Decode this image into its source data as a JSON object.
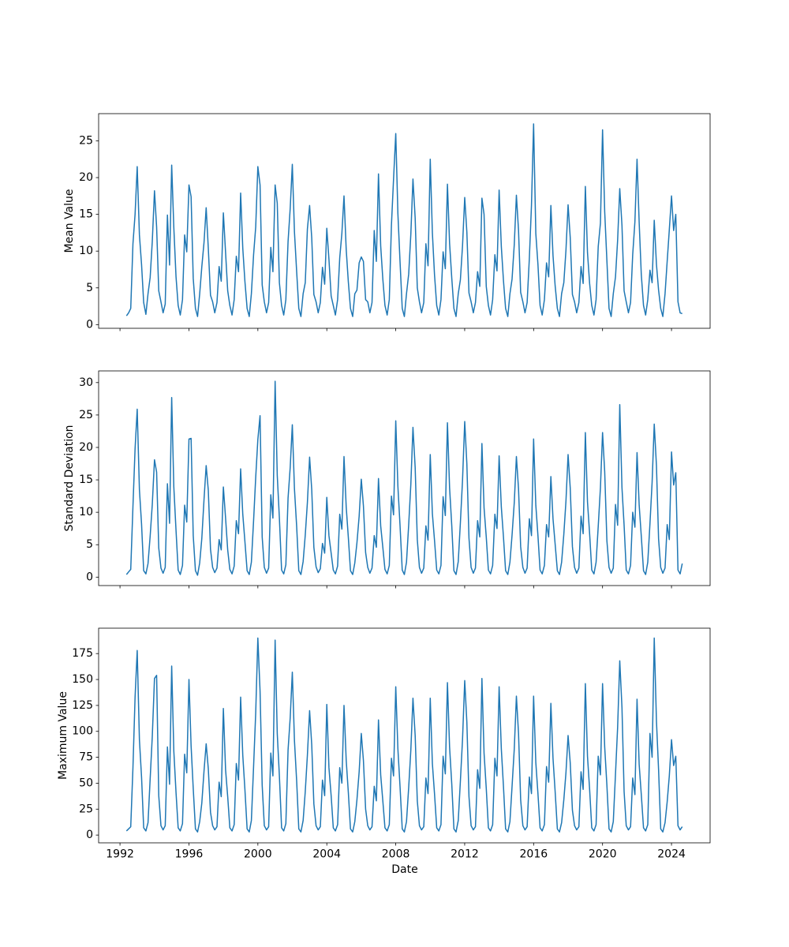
{
  "figure": {
    "background": "#ffffff",
    "line_color": "#1f77b4",
    "axis_color": "#000000",
    "xlabel": "Date",
    "x_tick_labels": [
      "1992",
      "1996",
      "2000",
      "2004",
      "2008",
      "2012",
      "2016",
      "2020",
      "2024"
    ],
    "x_ticks": [
      1992,
      1996,
      2000,
      2004,
      2008,
      2012,
      2016,
      2020,
      2024
    ],
    "xlim": [
      1990.76,
      2026.24
    ]
  },
  "chart_data": [
    {
      "type": "line",
      "title": "",
      "xlabel": "",
      "ylabel": "Mean Value",
      "legend": "none",
      "grid": false,
      "x_start": 1992.375,
      "x_step": 0.125,
      "yticks": [
        0,
        5,
        10,
        15,
        20,
        25
      ],
      "ylim": [
        -0.5,
        28.7
      ],
      "values": [
        1.2,
        1.6,
        2.2,
        11.0,
        15.0,
        21.5,
        12.2,
        8.2,
        3.0,
        1.4,
        4.2,
        6.4,
        11.3,
        18.2,
        13.3,
        4.6,
        3.1,
        1.6,
        2.8,
        14.9,
        8.1,
        21.7,
        13.2,
        6.5,
        2.6,
        1.3,
        3.4,
        12.2,
        9.9,
        19.0,
        17.4,
        6.3,
        2.2,
        1.1,
        4.2,
        7.9,
        11.2,
        15.9,
        10.4,
        4.0,
        3.1,
        1.6,
        3.0,
        7.9,
        5.9,
        15.2,
        9.8,
        4.6,
        2.6,
        1.3,
        3.4,
        9.3,
        7.2,
        17.9,
        10.4,
        5.9,
        2.2,
        1.1,
        4.2,
        9.5,
        13.3,
        21.5,
        19.0,
        5.4,
        3.1,
        1.6,
        3.0,
        10.5,
        7.2,
        19.0,
        16.5,
        5.7,
        2.6,
        1.3,
        3.4,
        11.3,
        15.8,
        21.8,
        12.6,
        7.2,
        2.2,
        1.1,
        4.2,
        5.7,
        13.0,
        16.2,
        11.8,
        4.1,
        3.1,
        1.6,
        3.0,
        7.8,
        5.5,
        13.1,
        8.9,
        3.9,
        2.6,
        1.3,
        3.4,
        9.1,
        12.4,
        17.5,
        10.2,
        5.8,
        2.2,
        1.1,
        4.2,
        4.7,
        8.4,
        9.2,
        8.6,
        3.4,
        3.1,
        1.6,
        3.0,
        12.8,
        8.6,
        20.5,
        10.7,
        6.2,
        2.6,
        1.3,
        3.4,
        13.5,
        19.8,
        26.0,
        15.1,
        8.6,
        2.2,
        1.1,
        4.2,
        6.9,
        12.3,
        19.8,
        14.5,
        5.0,
        3.1,
        1.6,
        3.0,
        11.0,
        8.0,
        22.5,
        12.5,
        6.8,
        2.6,
        1.3,
        3.4,
        9.9,
        7.6,
        19.1,
        11.1,
        6.3,
        2.2,
        1.1,
        4.2,
        6.1,
        10.7,
        17.3,
        12.6,
        4.3,
        3.1,
        1.6,
        3.0,
        7.2,
        5.2,
        17.2,
        15.0,
        5.2,
        2.6,
        1.3,
        3.4,
        9.5,
        7.3,
        18.3,
        10.6,
        6.0,
        2.2,
        1.1,
        4.2,
        6.2,
        10.9,
        17.6,
        12.8,
        4.4,
        3.1,
        1.6,
        3.0,
        9.0,
        16.2,
        27.3,
        12.4,
        8.2,
        2.6,
        1.3,
        3.4,
        8.4,
        6.5,
        16.2,
        9.4,
        5.3,
        2.2,
        1.1,
        4.2,
        5.7,
        10.1,
        16.3,
        11.9,
        4.1,
        3.1,
        1.6,
        3.0,
        7.9,
        5.6,
        18.8,
        9.8,
        5.6,
        2.6,
        1.3,
        3.4,
        10.6,
        13.8,
        26.5,
        15.4,
        8.7,
        2.2,
        1.1,
        4.2,
        6.5,
        11.5,
        18.5,
        13.5,
        4.6,
        3.1,
        1.6,
        3.0,
        9.5,
        14.0,
        22.5,
        13.9,
        6.8,
        2.6,
        1.3,
        3.4,
        7.4,
        5.7,
        14.2,
        8.2,
        4.7,
        2.2,
        1.1,
        4.2,
        8.6,
        12.9,
        17.5,
        12.8,
        15.0,
        3.1,
        1.6,
        1.5
      ]
    },
    {
      "type": "line",
      "title": "",
      "xlabel": "",
      "ylabel": "Standard Deviation",
      "legend": "none",
      "grid": false,
      "x_start": 1992.375,
      "x_step": 0.125,
      "yticks": [
        0,
        5,
        10,
        15,
        20,
        25,
        30
      ],
      "ylim": [
        -1.3,
        31.8
      ],
      "values": [
        0.4,
        0.8,
        1.2,
        10.9,
        19.8,
        25.9,
        13.5,
        8.2,
        1.0,
        0.5,
        2.1,
        6.3,
        11.2,
        18.1,
        16.2,
        4.5,
        1.4,
        0.6,
        1.5,
        14.4,
        8.3,
        27.7,
        13.9,
        7.2,
        1.1,
        0.4,
        1.8,
        11.1,
        8.5,
        21.3,
        21.4,
        6.4,
        1.0,
        0.3,
        2.2,
        6.0,
        12.0,
        17.2,
        13.4,
        4.3,
        1.5,
        0.7,
        1.4,
        5.8,
        4.2,
        13.9,
        9.1,
        4.2,
        1.2,
        0.5,
        1.7,
        8.7,
        6.7,
        16.7,
        9.7,
        5.5,
        1.0,
        0.4,
        2.3,
        8.7,
        15.4,
        21.2,
        24.9,
        6.2,
        1.5,
        0.6,
        1.4,
        12.7,
        9.1,
        30.2,
        15.7,
        9.1,
        1.1,
        0.5,
        1.9,
        12.2,
        16.9,
        23.5,
        13.6,
        7.8,
        1.0,
        0.4,
        2.4,
        6.5,
        11.5,
        18.5,
        13.5,
        4.6,
        1.6,
        0.7,
        1.3,
        5.2,
        3.7,
        12.3,
        6.4,
        3.7,
        1.1,
        0.5,
        1.7,
        9.7,
        7.4,
        18.6,
        10.8,
        6.1,
        1.0,
        0.4,
        2.2,
        5.3,
        9.4,
        15.1,
        11.0,
        3.8,
        1.5,
        0.6,
        1.4,
        6.4,
        4.6,
        15.2,
        7.9,
        4.6,
        1.2,
        0.5,
        1.8,
        12.5,
        9.6,
        24.1,
        14.0,
        8.0,
        1.1,
        0.4,
        2.3,
        8.1,
        14.3,
        23.1,
        16.9,
        5.8,
        1.5,
        0.6,
        1.4,
        7.9,
        5.7,
        18.9,
        9.8,
        5.7,
        1.1,
        0.5,
        1.8,
        12.4,
        9.5,
        23.8,
        13.8,
        7.9,
        1.0,
        0.4,
        2.4,
        8.4,
        14.9,
        24.0,
        17.5,
        6.0,
        1.5,
        0.6,
        1.4,
        8.7,
        6.2,
        20.6,
        10.7,
        6.2,
        1.1,
        0.5,
        1.8,
        9.7,
        7.5,
        18.7,
        10.8,
        6.2,
        1.0,
        0.4,
        2.3,
        6.5,
        11.5,
        18.6,
        13.6,
        4.7,
        1.5,
        0.6,
        1.4,
        9.0,
        6.4,
        21.3,
        11.1,
        6.4,
        1.1,
        0.5,
        1.8,
        8.1,
        6.2,
        15.5,
        9.0,
        5.1,
        1.0,
        0.4,
        2.3,
        6.6,
        11.7,
        18.9,
        13.8,
        4.7,
        1.5,
        0.6,
        1.4,
        9.4,
        6.7,
        22.3,
        11.6,
        6.7,
        1.1,
        0.5,
        2.3,
        7.8,
        13.8,
        22.3,
        16.3,
        5.6,
        1.5,
        0.6,
        1.4,
        11.2,
        8.0,
        26.6,
        13.8,
        8.0,
        1.1,
        0.5,
        1.8,
        10.0,
        7.7,
        19.2,
        11.1,
        6.3,
        1.0,
        0.4,
        2.3,
        8.3,
        14.6,
        23.6,
        17.2,
        5.9,
        1.5,
        0.6,
        1.4,
        8.1,
        5.8,
        19.3,
        14.2,
        16.1,
        1.1,
        0.5,
        2.1
      ]
    },
    {
      "type": "line",
      "title": "",
      "xlabel": "Date",
      "ylabel": "Maximum Value",
      "legend": "none",
      "grid": false,
      "x_start": 1992.375,
      "x_step": 0.125,
      "yticks": [
        0,
        25,
        50,
        75,
        100,
        125,
        150,
        175
      ],
      "ylim": [
        -7.5,
        199.5
      ],
      "values": [
        4,
        6,
        8,
        65,
        133,
        178,
        92,
        56,
        7,
        4,
        12,
        54,
        95,
        151,
        154,
        38,
        9,
        5,
        9,
        85,
        49,
        163,
        81,
        41,
        7,
        4,
        11,
        78,
        60,
        150,
        86,
        45,
        6,
        3,
        13,
        31,
        62,
        88,
        64,
        22,
        9,
        5,
        8,
        51,
        37,
        122,
        63,
        37,
        7,
        4,
        10,
        69,
        53,
        133,
        77,
        44,
        6,
        3,
        14,
        66,
        118,
        190,
        139,
        48,
        9,
        5,
        8,
        79,
        57,
        188,
        98,
        57,
        7,
        4,
        11,
        82,
        113,
        157,
        91,
        52,
        6,
        3,
        14,
        42,
        77,
        120,
        87,
        30,
        9,
        5,
        8,
        53,
        38,
        126,
        65,
        38,
        7,
        4,
        10,
        65,
        50,
        125,
        72,
        41,
        6,
        3,
        13,
        34,
        61,
        98,
        72,
        25,
        9,
        5,
        8,
        47,
        33,
        111,
        58,
        33,
        7,
        4,
        10,
        74,
        57,
        143,
        83,
        47,
        6,
        3,
        13,
        46,
        82,
        132,
        96,
        33,
        9,
        5,
        8,
        55,
        40,
        132,
        69,
        40,
        7,
        4,
        10,
        76,
        59,
        147,
        85,
        49,
        6,
        3,
        14,
        52,
        92,
        149,
        109,
        37,
        9,
        5,
        8,
        63,
        45,
        151,
        79,
        45,
        7,
        4,
        10,
        74,
        57,
        143,
        83,
        47,
        6,
        3,
        13,
        47,
        83,
        134,
        98,
        34,
        9,
        5,
        8,
        56,
        40,
        134,
        70,
        40,
        7,
        4,
        10,
        66,
        51,
        127,
        74,
        42,
        6,
        3,
        12,
        34,
        60,
        96,
        70,
        24,
        9,
        5,
        8,
        61,
        44,
        146,
        76,
        44,
        7,
        4,
        10,
        76,
        58,
        146,
        85,
        48,
        6,
        3,
        13,
        59,
        104,
        168,
        123,
        42,
        9,
        5,
        8,
        55,
        39,
        131,
        68,
        39,
        7,
        4,
        10,
        98,
        75,
        190,
        110,
        63,
        6,
        3,
        12,
        32,
        57,
        92,
        67,
        76,
        9,
        5,
        8
      ]
    }
  ]
}
